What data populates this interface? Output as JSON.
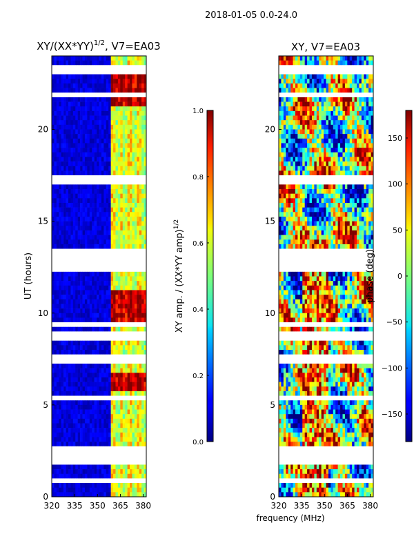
{
  "suptitle": "2018-01-05 0.0-24.0",
  "xlabel_shared": "frequency (MHz)",
  "chart_data": [
    {
      "type": "heatmap",
      "title_main": "XY/(XX*YY)",
      "title_sup": "1/2",
      "title_rest": ", V7=EA03",
      "xlabel": "",
      "ylabel": "UT (hours)",
      "xlim": [
        320,
        382
      ],
      "ylim": [
        0,
        24
      ],
      "xticks": [
        320,
        335,
        350,
        365,
        380
      ],
      "yticks": [
        0,
        5,
        10,
        15,
        20
      ],
      "colorbar": {
        "label_main": "XY amp. / (XX*YY amp)",
        "label_sup": "1/2",
        "range": [
          0.0,
          1.0
        ],
        "ticks": [
          "0.0",
          "0.2",
          "0.4",
          "0.6",
          "0.8",
          "1.0"
        ],
        "colormap": "jet"
      },
      "description": "Normalized cross-correlation amplitude vs frequency and time; high values concentrated in channels ~359-382 MHz, white rows are flagged/missing time samples."
    },
    {
      "type": "heatmap",
      "title_main": "XY, V7=EA03",
      "xlabel": "frequency (MHz)",
      "ylabel": "",
      "xlim": [
        320,
        382
      ],
      "ylim": [
        0,
        24
      ],
      "xticks": [
        320,
        335,
        350,
        365,
        380
      ],
      "yticks": [
        0,
        5,
        10,
        15,
        20
      ],
      "colorbar": {
        "label_main": "phase (deg)",
        "range": [
          -180,
          180
        ],
        "ticks": [
          "−150",
          "−100",
          "−50",
          "0",
          "50",
          "100",
          "150"
        ],
        "tick_values": [
          -150,
          -100,
          -50,
          0,
          50,
          100,
          150
        ],
        "colormap": "jet"
      },
      "description": "Cross-correlation phase vs frequency and time; noisy phase with white flagged rows."
    }
  ]
}
